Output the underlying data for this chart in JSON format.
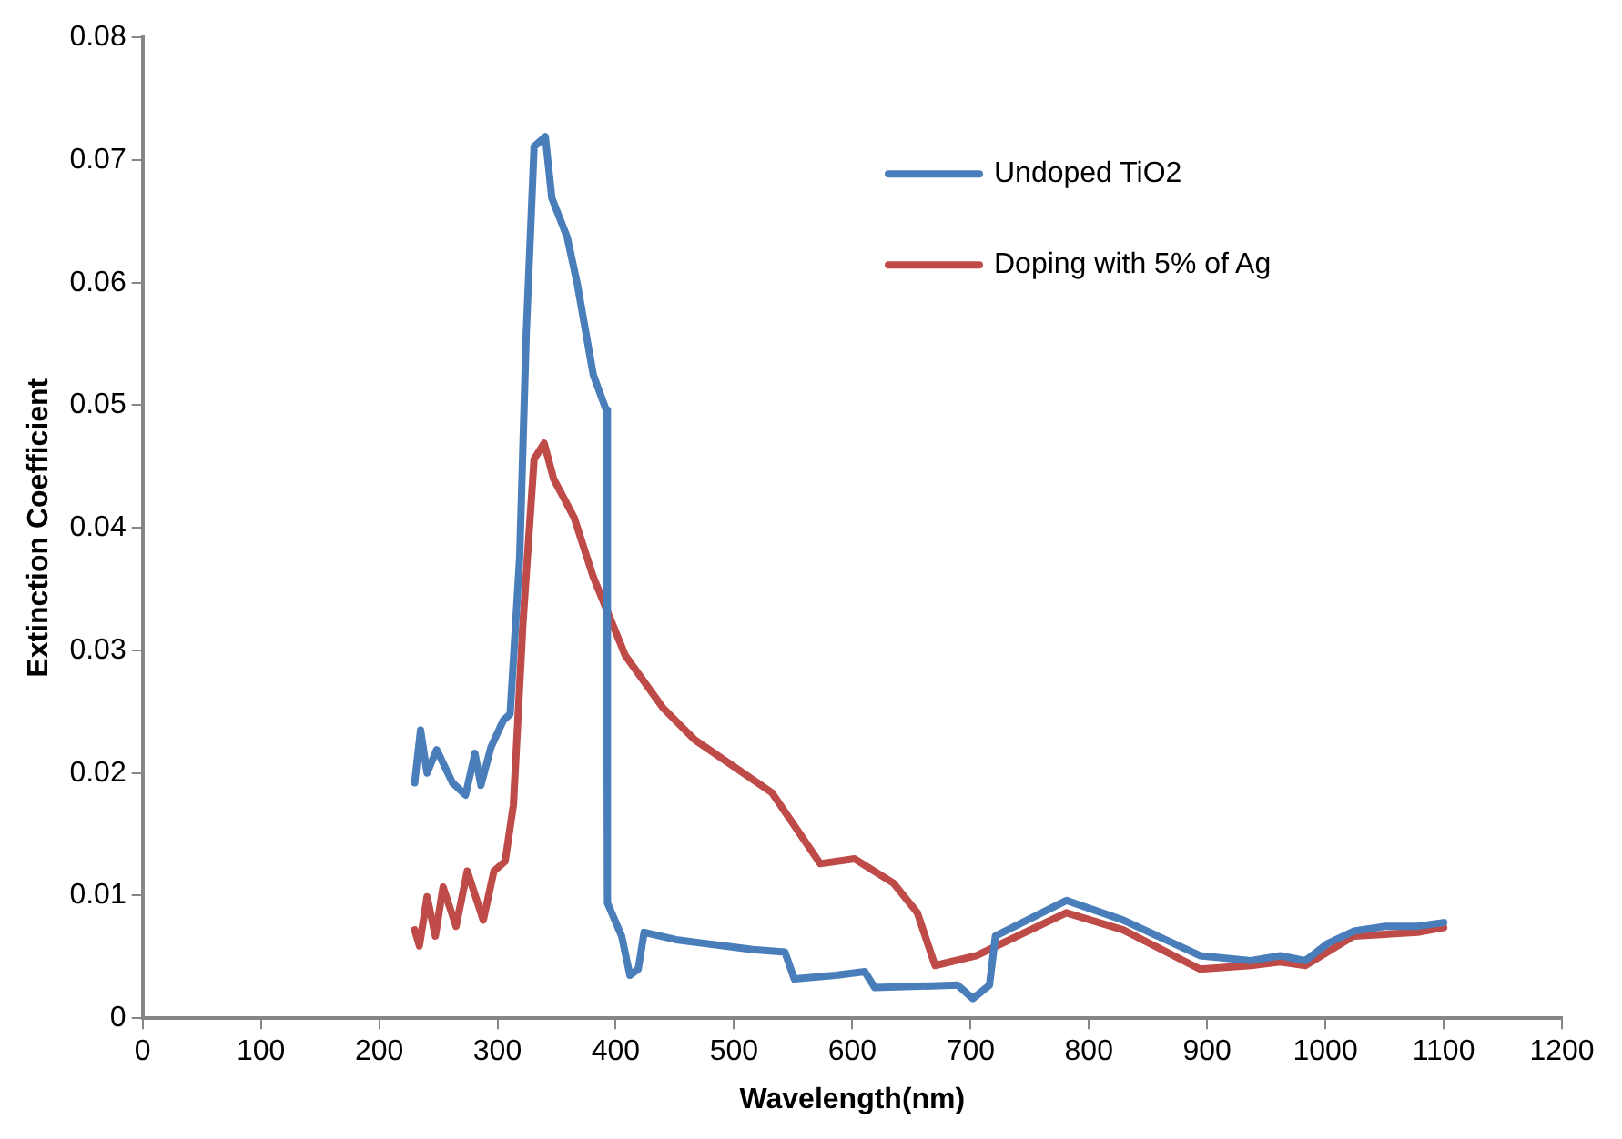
{
  "chart_data": {
    "type": "line",
    "xlabel": "Wavelength(nm)",
    "ylabel": "Extinction Coefficient",
    "xlim": [
      0,
      1200
    ],
    "xticks": [
      0,
      100,
      200,
      300,
      400,
      500,
      600,
      700,
      800,
      900,
      1000,
      1100,
      1200
    ],
    "ylim": [
      0,
      0.08
    ],
    "yticks": [
      0,
      0.01,
      0.02,
      0.03,
      0.04,
      0.05,
      0.06,
      0.07,
      0.08
    ],
    "grid": false,
    "legend": "top right",
    "marker": "none",
    "line_style": "solid",
    "series": [
      {
        "name": "Undoped TiO2",
        "color": "#4a7ebb",
        "x": [
          230,
          235,
          240.5,
          248.6,
          262,
          273,
          281,
          286,
          294.5,
          305,
          310.7,
          318.8,
          324.3,
          331,
          340.5,
          346,
          359,
          367.5,
          381,
          392,
          393,
          405,
          412,
          419,
          424,
          451,
          516,
          543,
          551,
          586,
          610.5,
          619,
          689,
          702,
          716,
          721,
          781,
          829,
          894,
          937,
          962,
          983,
          1002,
          1024,
          1051,
          1078,
          1100
        ],
        "values": [
          0.0192,
          0.0235,
          0.02,
          0.0219,
          0.0192,
          0.0182,
          0.0216,
          0.019,
          0.0221,
          0.0243,
          0.0248,
          0.0376,
          0.0557,
          0.0711,
          0.0719,
          0.0669,
          0.0637,
          0.0599,
          0.0525,
          0.0496,
          0.0094,
          0.0067,
          0.0035,
          0.004,
          0.007,
          0.0064,
          0.0056,
          0.0054,
          0.0032,
          0.0035,
          0.0038,
          0.0025,
          0.0027,
          0.0016,
          0.0027,
          0.0067,
          0.0096,
          0.008,
          0.0051,
          0.0047,
          0.0051,
          0.0047,
          0.0061,
          0.0071,
          0.0075,
          0.0075,
          0.0078
        ]
      },
      {
        "name": "Doping with 5% of Ag",
        "color": "#be4b48",
        "x": [
          230,
          234,
          240.5,
          247.5,
          254,
          265,
          274.5,
          288,
          297,
          306.5,
          313.5,
          321.6,
          331,
          339.5,
          347.5,
          365,
          381,
          408,
          440,
          467,
          532,
          573,
          602,
          635,
          655,
          670,
          705,
          781,
          829,
          894,
          937,
          962,
          983,
          1024,
          1078,
          1100
        ],
        "values": [
          0.0072,
          0.0059,
          0.0099,
          0.0067,
          0.0107,
          0.0075,
          0.012,
          0.008,
          0.012,
          0.0128,
          0.0174,
          0.0323,
          0.0456,
          0.0469,
          0.044,
          0.0408,
          0.036,
          0.0296,
          0.0253,
          0.0227,
          0.0184,
          0.0126,
          0.013,
          0.011,
          0.0086,
          0.0043,
          0.0051,
          0.0086,
          0.0072,
          0.004,
          0.0043,
          0.0046,
          0.0043,
          0.0067,
          0.007,
          0.0074
        ]
      }
    ]
  }
}
